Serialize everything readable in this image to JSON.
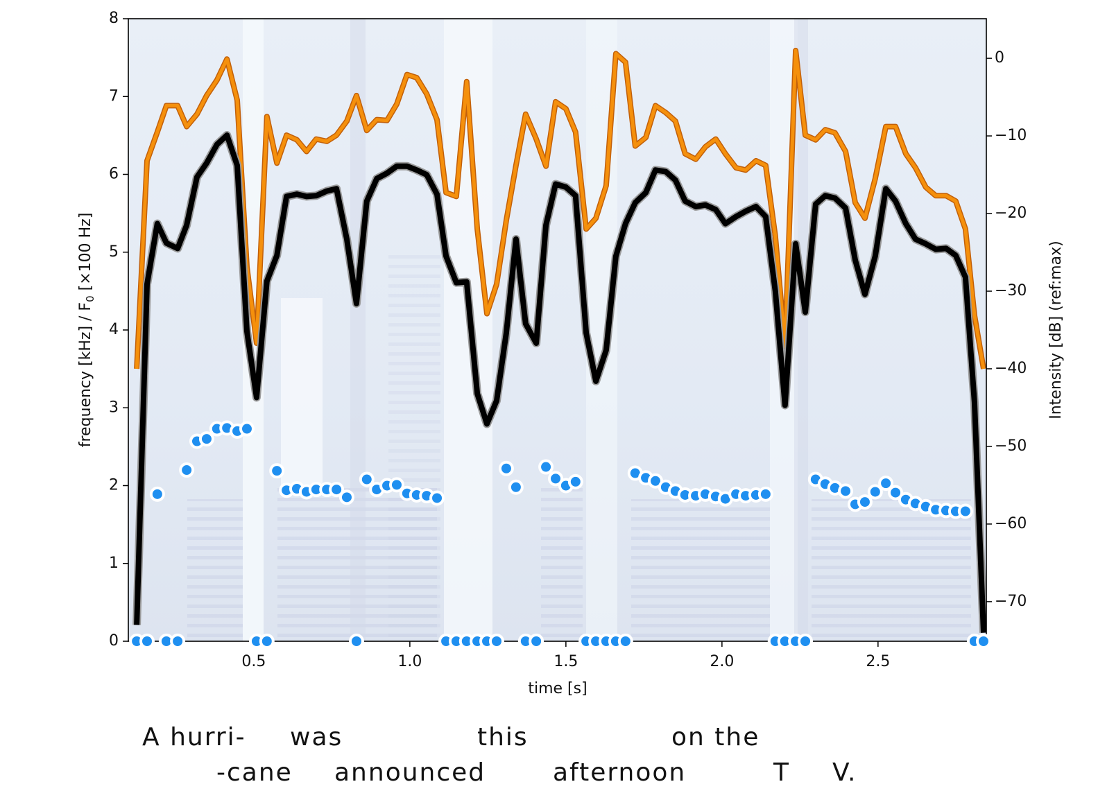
{
  "chart_data": {
    "type": "combo",
    "xlabel": "time [s]",
    "ylabel": [
      "frequency [kHz]  /  F",
      "0",
      " [×100 Hz]"
    ],
    "y2label": "Intensity [dB] (ref:max)",
    "xlim": [
      0.098,
      2.847
    ],
    "ylim": [
      0,
      8
    ],
    "y2lim": [
      -75.1,
      5.1
    ],
    "xticks": [
      0.5,
      {
        "value": 1,
        "label": "1.0"
      },
      1.5,
      {
        "value": 2,
        "label": "2.0"
      },
      2.5
    ],
    "yticks": [
      0,
      1,
      2,
      3,
      4,
      5,
      6,
      7,
      8
    ],
    "y2ticks": [
      {
        "value": 0,
        "label": "0"
      },
      {
        "value": -10,
        "label": "−10"
      },
      {
        "value": -20,
        "label": "−20"
      },
      {
        "value": -30,
        "label": "−30"
      },
      {
        "value": -40,
        "label": "−40"
      },
      {
        "value": -50,
        "label": "−50"
      },
      {
        "value": -60,
        "label": "−60"
      },
      {
        "value": -70,
        "label": "−70"
      }
    ],
    "x": [
      0.125,
      0.158,
      0.191,
      0.22,
      0.256,
      0.285,
      0.318,
      0.349,
      0.382,
      0.414,
      0.447,
      0.478,
      0.509,
      0.542,
      0.574,
      0.605,
      0.638,
      0.669,
      0.7,
      0.734,
      0.765,
      0.798,
      0.829,
      0.862,
      0.894,
      0.927,
      0.958,
      0.991,
      1.022,
      1.054,
      1.087,
      1.116,
      1.149,
      1.182,
      1.216,
      1.247,
      1.278,
      1.309,
      1.34,
      1.371,
      1.405,
      1.436,
      1.467,
      1.5,
      1.531,
      1.565,
      1.596,
      1.629,
      1.66,
      1.691,
      1.722,
      1.756,
      1.787,
      1.82,
      1.851,
      1.882,
      1.916,
      1.947,
      1.98,
      2.011,
      2.045,
      2.076,
      2.109,
      2.14,
      2.171,
      2.202,
      2.236,
      2.267,
      2.3,
      2.331,
      2.362,
      2.396,
      2.427,
      2.458,
      2.491,
      2.525,
      2.556,
      2.589,
      2.62,
      2.653,
      2.685,
      2.718,
      2.749,
      2.78,
      2.809,
      2.838
    ],
    "series": [
      {
        "type": "line",
        "axis": "y2",
        "color": "#f5900c",
        "values": [
          -40,
          -13.2,
          -9.5,
          -6.1,
          -6.1,
          -8.8,
          -7.2,
          -4.8,
          -2.8,
          -0.1,
          -5.4,
          -26.9,
          -36.7,
          -7.5,
          -13.5,
          -9.9,
          -10.5,
          -12.0,
          -10.4,
          -10.7,
          -9.9,
          -8.1,
          -4.8,
          -9.3,
          -7.9,
          -8.0,
          -5.9,
          -2.1,
          -2.5,
          -4.6,
          -7.9,
          -17.3,
          -17.8,
          -3.0,
          -22.0,
          -32.9,
          -29.1,
          -20.9,
          -13.8,
          -7.2,
          -10.4,
          -13.9,
          -5.6,
          -6.5,
          -9.5,
          -22.0,
          -20.6,
          -16.4,
          0.6,
          -0.5,
          -11.3,
          -10.2,
          -6.1,
          -7.0,
          -8.1,
          -12.3,
          -13.0,
          -11.4,
          -10.4,
          -12.3,
          -14.1,
          -14.4,
          -13.2,
          -13.8,
          -22.9,
          -37.1,
          1.0,
          -9.9,
          -10.5,
          -9.2,
          -9.6,
          -12.0,
          -18.6,
          -20.6,
          -15.5,
          -8.8,
          -8.8,
          -12.3,
          -14.1,
          -16.6,
          -17.7,
          -17.7,
          -18.4,
          -22.0,
          -33.1,
          -40
        ]
      },
      {
        "type": "line",
        "axis": "y2",
        "color": "#000000",
        "values": [
          -73,
          -29.1,
          -21.3,
          -23.8,
          -24.5,
          -21.5,
          -15.3,
          -13.5,
          -11.1,
          -9.9,
          -13.8,
          -35.2,
          -43.7,
          -28.7,
          -25.4,
          -17.8,
          -17.5,
          -17.8,
          -17.7,
          -17.1,
          -16.8,
          -23.3,
          -31.6,
          -18.4,
          -15.5,
          -14.8,
          -13.9,
          -13.9,
          -14.4,
          -15.0,
          -17.5,
          -25.5,
          -28.9,
          -28.8,
          -43.2,
          -47.1,
          -44.1,
          -35.4,
          -23.3,
          -34.2,
          -36.7,
          -21.5,
          -16.2,
          -16.6,
          -17.7,
          -35.4,
          -41.6,
          -37.6,
          -25.5,
          -21.3,
          -18.6,
          -17.3,
          -14.4,
          -14.6,
          -15.7,
          -18.4,
          -19.1,
          -18.9,
          -19.5,
          -21.3,
          -20.4,
          -19.7,
          -19.1,
          -20.4,
          -30.0,
          -44.7,
          -23.9,
          -32.7,
          -18.8,
          -17.7,
          -18.0,
          -19.3,
          -26.0,
          -30.4,
          -25.5,
          -16.8,
          -18.4,
          -21.3,
          -23.3,
          -23.9,
          -24.6,
          -24.5,
          -25.4,
          -28.2,
          -44.3,
          -74
        ]
      },
      {
        "type": "scatter",
        "color": "#1f8ff0",
        "values": [
          0,
          0,
          1.89,
          0,
          0,
          2.2,
          2.57,
          2.6,
          2.73,
          2.74,
          2.7,
          2.73,
          0,
          0,
          2.19,
          1.94,
          1.96,
          1.92,
          1.95,
          1.95,
          1.95,
          1.85,
          0,
          2.08,
          1.95,
          2.0,
          2.01,
          1.9,
          1.88,
          1.87,
          1.84,
          0,
          0,
          0,
          0,
          0,
          0,
          2.22,
          1.98,
          0,
          0,
          2.24,
          2.09,
          2.0,
          2.05,
          0,
          0,
          0,
          0,
          0,
          2.16,
          2.1,
          2.06,
          1.98,
          1.93,
          1.88,
          1.87,
          1.89,
          1.86,
          1.83,
          1.89,
          1.87,
          1.88,
          1.89,
          0,
          0,
          0,
          0,
          2.08,
          2.02,
          1.97,
          1.93,
          1.76,
          1.79,
          1.92,
          2.03,
          1.91,
          1.82,
          1.77,
          1.73,
          1.69,
          1.68,
          1.67,
          1.67,
          0,
          0
        ]
      }
    ],
    "words": [
      [
        "A hurri-",
        "was",
        "this",
        "on the"
      ],
      [
        "-cane",
        "announced",
        "afternoon",
        "T",
        "V."
      ]
    ]
  }
}
